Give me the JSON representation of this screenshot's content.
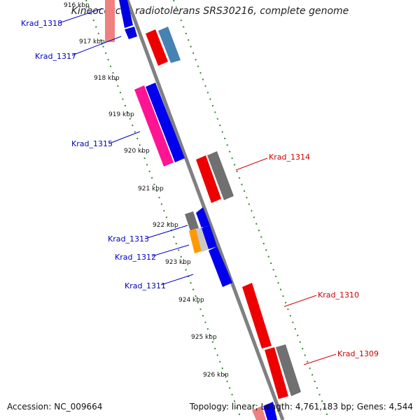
{
  "title": "Kineococcus radiotolerans SRS30216, complete genome",
  "accession": "Accession: NC_009664",
  "summary": "Topology: linear; Length: 4,761,183 bp; Genes: 4,544",
  "colors": {
    "axis": "#808080",
    "ruler": "#2e8b2e",
    "label_left": "#0000c0",
    "label_right": "#d00000"
  },
  "kbp_ticks": [
    "916 kbp",
    "917 kbp",
    "918 kbp",
    "919 kbp",
    "920 kbp",
    "921 kbp",
    "922 kbp",
    "923 kbp",
    "924 kbp",
    "925 kbp",
    "926 kbp"
  ],
  "gene_labels": {
    "left": [
      "Krad_1318",
      "Krad_1317",
      "Krad_1315",
      "Krad_1313",
      "Krad_1312",
      "Krad_1311"
    ],
    "right": [
      "Krad_1314",
      "Krad_1310",
      "Krad_1309"
    ]
  }
}
